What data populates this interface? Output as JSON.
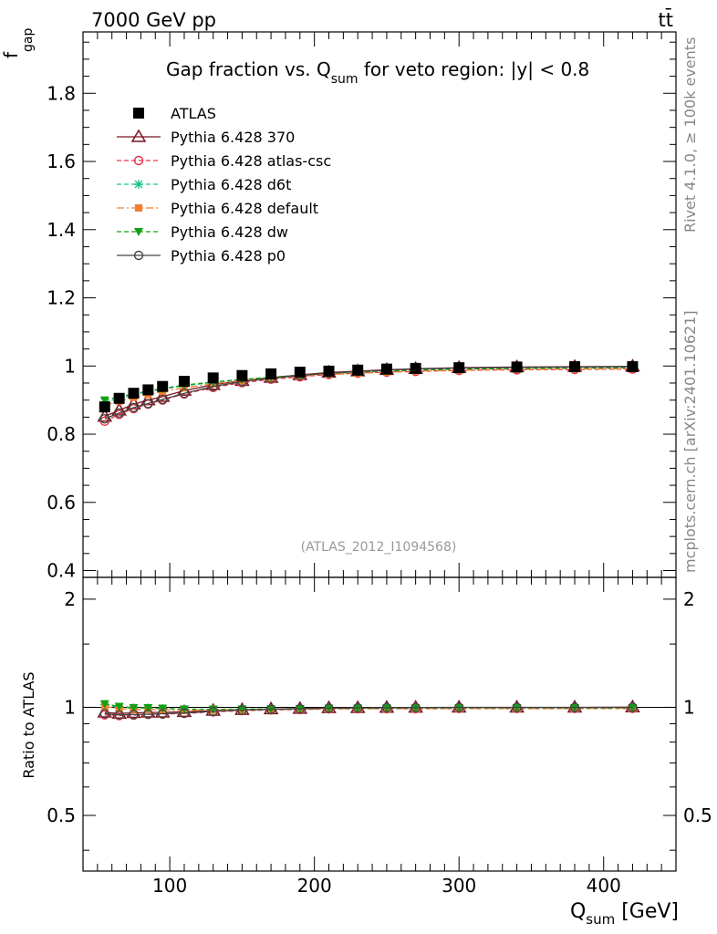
{
  "header": {
    "energy": "7000 GeV pp",
    "process": "tt̄"
  },
  "side": {
    "rivet": "Rivet 4.1.0, ≥ 100k events",
    "mcplots": "mcplots.cern.ch [arXiv:2401.10621]"
  },
  "chart_data": {
    "type": "line",
    "title": {
      "main": "Gap fraction vs. Q",
      "sub": "sum",
      "rest": " for veto region: |y| < 0.8"
    },
    "analysis": "(ATLAS_2012_I1094568)",
    "ylabel": {
      "main": "f",
      "sub": "gap"
    },
    "ratio_ylabel": "Ratio to ATLAS",
    "xlabel": {
      "main": "Q",
      "sub": "sum",
      "rest": " [GeV]"
    },
    "xlim": [
      40,
      450
    ],
    "ylim": [
      0.38,
      1.98
    ],
    "ratio_ylim": [
      0.35,
      2.3
    ],
    "x_ticks": [
      100,
      200,
      300,
      400
    ],
    "x_tick_labels": [
      "100",
      "200",
      "300",
      "400"
    ],
    "y_ticks": [
      0.4,
      0.6,
      0.8,
      1.0,
      1.2,
      1.4,
      1.6,
      1.8
    ],
    "y_tick_labels": [
      "0.4",
      "0.6",
      "0.8",
      "1",
      "1.2",
      "1.4",
      "1.6",
      "1.8"
    ],
    "ratio_ticks": [
      0.5,
      1,
      2
    ],
    "ratio_tick_labels": [
      "0.5",
      "1",
      "2"
    ],
    "x": [
      55,
      65,
      75,
      85,
      95,
      110,
      130,
      150,
      170,
      190,
      210,
      230,
      250,
      270,
      300,
      340,
      380,
      420
    ],
    "series": [
      {
        "name": "ATLAS",
        "color": "#000000",
        "marker": "square",
        "values": [
          0.88,
          0.905,
          0.92,
          0.93,
          0.94,
          0.955,
          0.965,
          0.972,
          0.977,
          0.982,
          0.985,
          0.988,
          0.991,
          0.993,
          0.995,
          0.997,
          0.998,
          0.998
        ],
        "errors": [
          0.015,
          0.012,
          0.011,
          0.01,
          0.009,
          0.008,
          0.007,
          0.006,
          0.006,
          0.005,
          0.005,
          0.004,
          0.004,
          0.004,
          0.004,
          0.003,
          0.003,
          0.003
        ]
      },
      {
        "name": "Pythia 6.428 370",
        "color": "#7a1420",
        "marker": "triangle",
        "dash": "",
        "values": [
          0.852,
          0.87,
          0.888,
          0.9,
          0.91,
          0.928,
          0.945,
          0.957,
          0.966,
          0.974,
          0.981,
          0.985,
          0.989,
          0.992,
          0.995,
          0.997,
          0.998,
          0.999
        ]
      },
      {
        "name": "Pythia 6.428 atlas-csc",
        "color": "#e8334a",
        "marker": "circle",
        "dash": "5,3",
        "values": [
          0.838,
          0.858,
          0.875,
          0.888,
          0.9,
          0.918,
          0.937,
          0.951,
          0.961,
          0.968,
          0.975,
          0.979,
          0.982,
          0.984,
          0.987,
          0.989,
          0.99,
          0.991
        ]
      },
      {
        "name": "Pythia 6.428 d6t",
        "color": "#1fbf90",
        "marker": "star",
        "dash": "5,3",
        "values": [
          0.895,
          0.905,
          0.915,
          0.925,
          0.932,
          0.942,
          0.952,
          0.96,
          0.967,
          0.973,
          0.978,
          0.982,
          0.985,
          0.988,
          0.991,
          0.993,
          0.994,
          0.995
        ]
      },
      {
        "name": "Pythia 6.428 default",
        "color": "#f57f2a",
        "marker": "filled-square",
        "dash": "8,3,2,3",
        "values": [
          0.885,
          0.897,
          0.908,
          0.917,
          0.925,
          0.936,
          0.948,
          0.957,
          0.964,
          0.97,
          0.975,
          0.979,
          0.982,
          0.985,
          0.988,
          0.99,
          0.991,
          0.992
        ]
      },
      {
        "name": "Pythia 6.428 dw",
        "color": "#149e14",
        "marker": "down-triangle",
        "dash": "5,3",
        "values": [
          0.9,
          0.91,
          0.918,
          0.927,
          0.934,
          0.944,
          0.953,
          0.961,
          0.967,
          0.973,
          0.978,
          0.982,
          0.985,
          0.988,
          0.991,
          0.993,
          0.994,
          0.995
        ]
      },
      {
        "name": "Pythia 6.428 p0",
        "color": "#444444",
        "marker": "open-circle",
        "dash": "",
        "values": [
          0.845,
          0.862,
          0.878,
          0.89,
          0.902,
          0.92,
          0.94,
          0.954,
          0.964,
          0.972,
          0.979,
          0.984,
          0.988,
          0.991,
          0.994,
          0.996,
          0.997,
          0.998
        ]
      }
    ]
  }
}
